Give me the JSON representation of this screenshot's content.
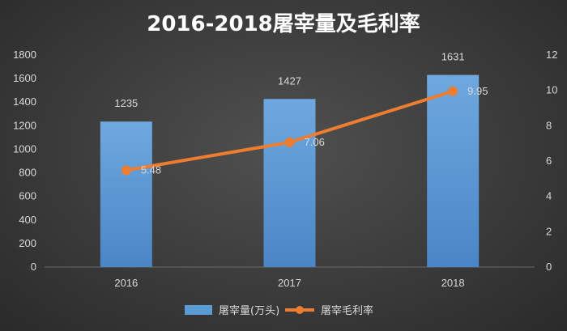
{
  "chart_data": {
    "type": "bar",
    "title": "2016-2018屠宰量及毛利率",
    "categories": [
      "2016",
      "2017",
      "2018"
    ],
    "series": [
      {
        "name": "屠宰量(万头)",
        "type": "bar",
        "axis": "left",
        "values": [
          1235,
          1427,
          1631
        ],
        "labels": [
          "1235",
          "1427",
          "1631"
        ],
        "color": "#5b9bd5"
      },
      {
        "name": "屠宰毛利率",
        "type": "line",
        "axis": "right",
        "values": [
          5.48,
          7.06,
          9.95
        ],
        "labels": [
          "5.48",
          "7.06",
          "9.95"
        ],
        "color": "#ed7d31"
      }
    ],
    "y_left": {
      "range": [
        0,
        1800
      ],
      "ticks": [
        "0",
        "200",
        "400",
        "600",
        "800",
        "1000",
        "1200",
        "1400",
        "1600",
        "1800"
      ]
    },
    "y_right": {
      "range": [
        0,
        12
      ],
      "ticks": [
        "0",
        "2",
        "4",
        "6",
        "8",
        "10",
        "12"
      ]
    },
    "grid": false,
    "legend": "bottom"
  }
}
